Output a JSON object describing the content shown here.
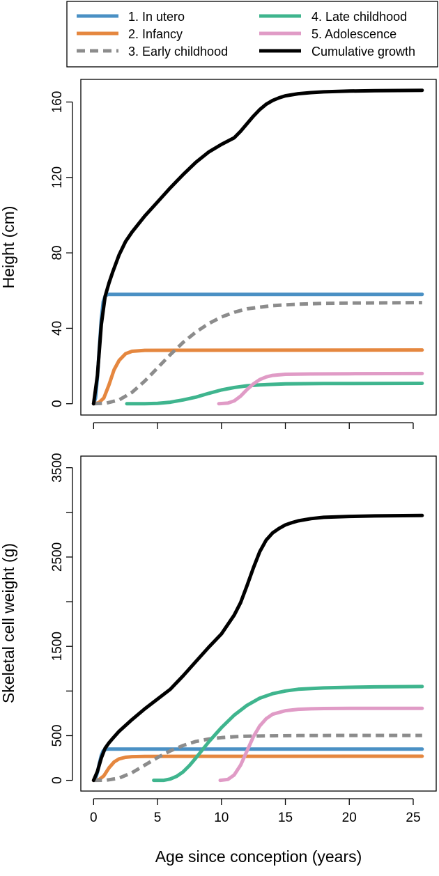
{
  "figure": {
    "xlabel": "Age since conception (years)"
  },
  "legend": {
    "entries": [
      {
        "label": "1. In utero",
        "color": "#4a90c4",
        "style": "solid"
      },
      {
        "label": "2. Infancy",
        "color": "#e5873f",
        "style": "solid"
      },
      {
        "label": "3. Early childhood",
        "color": "#8c8c8c",
        "style": "dashed"
      },
      {
        "label": "4. Late childhood",
        "color": "#3fb58e",
        "style": "solid"
      },
      {
        "label": "5. Adolescence",
        "color": "#e09bc6",
        "style": "solid"
      },
      {
        "label": "Cumulative growth",
        "color": "#000000",
        "style": "solid"
      }
    ]
  },
  "chart_data": [
    {
      "type": "line",
      "title": "",
      "xlabel": "",
      "ylabel": "Height (cm)",
      "xlim": [
        -1.0,
        26.8
      ],
      "ylim": [
        -6,
        172
      ],
      "xticks": [
        0,
        5,
        10,
        15,
        20,
        25
      ],
      "xtick_labels": [
        "",
        "",
        "",
        "",
        "",
        ""
      ],
      "yticks": [
        0,
        40,
        80,
        120,
        160
      ],
      "ytick_labels": [
        "0",
        "40",
        "80",
        "120",
        "160"
      ],
      "series": [
        {
          "name": "1. In utero",
          "color": "#4a90c4",
          "dash": false,
          "x": [
            0,
            0.15,
            0.3,
            0.45,
            0.6,
            0.75,
            0.9,
            1.1,
            1.5,
            25.7
          ],
          "y": [
            0,
            3,
            14,
            30,
            45,
            54,
            57,
            58,
            58,
            58
          ]
        },
        {
          "name": "2. Infancy",
          "color": "#e5873f",
          "dash": false,
          "x": [
            0,
            0.4,
            0.8,
            1.2,
            1.6,
            2.0,
            2.5,
            3.0,
            4,
            25.7
          ],
          "y": [
            0,
            0.5,
            3,
            10,
            18,
            23,
            26.5,
            27.8,
            28.3,
            28.5
          ]
        },
        {
          "name": "3. Early childhood",
          "color": "#8c8c8c",
          "dash": true,
          "x": [
            0,
            1,
            2,
            3,
            4,
            5,
            6,
            7,
            8,
            9,
            10,
            11,
            12,
            14,
            16,
            18,
            20,
            25.7
          ],
          "y": [
            0,
            0.3,
            2,
            6,
            12,
            19,
            26,
            32.5,
            38,
            42.5,
            46,
            48.5,
            50.3,
            52,
            52.8,
            53.2,
            53.4,
            53.6
          ]
        },
        {
          "name": "4. Late childhood",
          "color": "#3fb58e",
          "dash": false,
          "x": [
            2.6,
            4,
            5,
            6,
            7,
            8,
            9,
            10,
            11,
            12,
            13,
            15,
            18,
            25.7
          ],
          "y": [
            0,
            0,
            0.2,
            0.8,
            2,
            3.5,
            5.5,
            7.3,
            8.6,
            9.5,
            10,
            10.5,
            10.7,
            10.8
          ]
        },
        {
          "name": "5. Adolescence",
          "color": "#e09bc6",
          "dash": false,
          "x": [
            9.8,
            10.5,
            11,
            11.5,
            12,
            12.5,
            13,
            13.5,
            14,
            15,
            17,
            20,
            25.7
          ],
          "y": [
            0,
            0.3,
            1.5,
            4,
            7.5,
            10.5,
            12.8,
            14.2,
            15,
            15.6,
            15.8,
            15.9,
            16
          ]
        },
        {
          "name": "Cumulative growth",
          "color": "#000000",
          "dash": false,
          "x": [
            0,
            0.3,
            0.6,
            0.9,
            1.2,
            1.5,
            2,
            2.5,
            3,
            4,
            5,
            6,
            7,
            8,
            9,
            10,
            11,
            11.5,
            12,
            12.5,
            13,
            13.5,
            14,
            14.5,
            15,
            16,
            17,
            18,
            20,
            22,
            25.7
          ],
          "y": [
            0,
            15,
            42,
            57,
            64,
            70,
            79,
            86,
            91,
            99.5,
            107,
            114.5,
            121.5,
            128,
            133.5,
            137.5,
            141,
            144.5,
            148.5,
            152.5,
            156,
            158.8,
            160.8,
            162.2,
            163.3,
            164.4,
            165,
            165.4,
            165.8,
            166,
            166.2
          ]
        }
      ]
    },
    {
      "type": "line",
      "title": "",
      "xlabel": "Age since conception (years)",
      "ylabel": "Skeletal cell weight (g)",
      "xlim": [
        -1.0,
        26.8
      ],
      "ylim": [
        -120,
        3630
      ],
      "xticks": [
        0,
        5,
        10,
        15,
        20,
        25
      ],
      "xtick_labels": [
        "0",
        "5",
        "10",
        "15",
        "20",
        "25"
      ],
      "yticks": [
        0,
        500,
        1000,
        1500,
        2000,
        2500,
        3000,
        3500
      ],
      "ytick_labels": [
        "0",
        "500",
        "",
        "1500",
        "",
        "2500",
        "",
        "3500"
      ],
      "series": [
        {
          "name": "1. In utero",
          "color": "#4a90c4",
          "dash": false,
          "x": [
            0,
            0.15,
            0.3,
            0.45,
            0.6,
            0.75,
            0.9,
            1.1,
            1.5,
            25.7
          ],
          "y": [
            0,
            20,
            90,
            190,
            280,
            330,
            345,
            350,
            350,
            350
          ]
        },
        {
          "name": "2. Infancy",
          "color": "#e5873f",
          "dash": false,
          "x": [
            0,
            0.4,
            0.8,
            1.2,
            1.6,
            2.0,
            2.5,
            3.0,
            4,
            25.7
          ],
          "y": [
            0,
            5,
            50,
            140,
            205,
            240,
            258,
            265,
            268,
            270
          ]
        },
        {
          "name": "3. Early childhood",
          "color": "#8c8c8c",
          "dash": true,
          "x": [
            0,
            1,
            2,
            3,
            4,
            5,
            6,
            7,
            8,
            9,
            10,
            11,
            12,
            14,
            16,
            18,
            20,
            25.7
          ],
          "y": [
            0,
            2,
            25,
            85,
            170,
            255,
            330,
            390,
            435,
            462,
            478,
            488,
            494,
            499,
            501,
            502,
            503,
            503
          ]
        },
        {
          "name": "4. Late childhood",
          "color": "#3fb58e",
          "dash": false,
          "x": [
            4.7,
            5.5,
            6,
            6.5,
            7,
            7.5,
            8,
            8.5,
            9,
            9.5,
            10,
            11,
            12,
            13,
            14,
            15,
            16,
            18,
            20,
            22,
            25.7
          ],
          "y": [
            0,
            0,
            15,
            45,
            95,
            165,
            250,
            340,
            430,
            510,
            590,
            730,
            840,
            920,
            970,
            1000,
            1020,
            1035,
            1042,
            1046,
            1050
          ]
        },
        {
          "name": "5. Adolescence",
          "color": "#e09bc6",
          "dash": false,
          "x": [
            9.9,
            10.5,
            11,
            11.5,
            12,
            12.5,
            13,
            13.5,
            14,
            15,
            16,
            17,
            18,
            20,
            25.7
          ],
          "y": [
            0,
            10,
            60,
            170,
            330,
            490,
            610,
            690,
            740,
            780,
            795,
            801,
            804,
            806,
            806
          ]
        },
        {
          "name": "Cumulative growth",
          "color": "#000000",
          "dash": false,
          "x": [
            0,
            0.3,
            0.6,
            0.9,
            1.2,
            1.5,
            2,
            3,
            4,
            5,
            6,
            7,
            8,
            9,
            10,
            11,
            11.5,
            12,
            12.5,
            13,
            13.5,
            14,
            14.5,
            15,
            15.5,
            16,
            17,
            18,
            20,
            22,
            25.7
          ],
          "y": [
            0,
            100,
            250,
            360,
            420,
            470,
            550,
            680,
            800,
            910,
            1020,
            1170,
            1330,
            1490,
            1640,
            1850,
            1990,
            2180,
            2380,
            2560,
            2690,
            2770,
            2820,
            2860,
            2885,
            2905,
            2930,
            2945,
            2955,
            2960,
            2965
          ]
        }
      ]
    }
  ]
}
